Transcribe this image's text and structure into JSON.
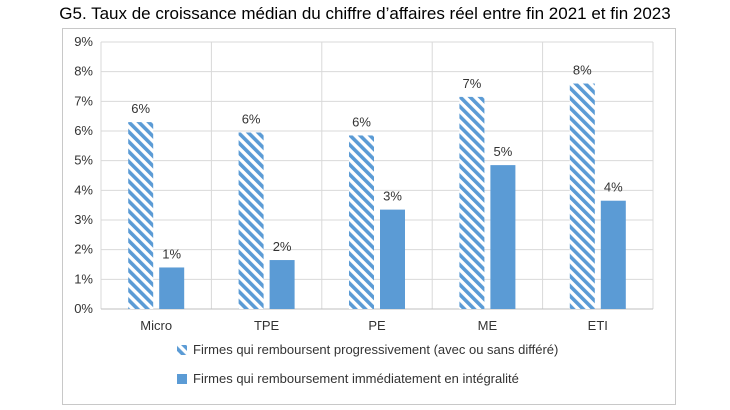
{
  "chart_data": {
    "type": "bar",
    "title": "G5. Taux de croissance médian du chiffre d’affaires réel entre fin 2021 et fin 2023",
    "categories": [
      "Micro",
      "TPE",
      "PE",
      "ME",
      "ETI"
    ],
    "series": [
      {
        "name": "Firmes qui remboursent progressivement (avec ou sans différé)",
        "values": [
          6.3,
          5.95,
          5.85,
          7.15,
          7.6
        ],
        "labels": [
          "6%",
          "6%",
          "6%",
          "7%",
          "8%"
        ],
        "pattern": "diagonal-stripes",
        "color": "#5b9bd5"
      },
      {
        "name": "Firmes qui remboursement immédiatement en intégralité",
        "values": [
          1.4,
          1.65,
          3.35,
          4.85,
          3.65
        ],
        "labels": [
          "1%",
          "2%",
          "3%",
          "5%",
          "4%"
        ],
        "pattern": "solid",
        "color": "#5b9bd5"
      }
    ],
    "ylim": [
      0,
      9
    ],
    "yticks": [
      "0%",
      "1%",
      "2%",
      "3%",
      "4%",
      "5%",
      "6%",
      "7%",
      "8%",
      "9%"
    ],
    "ylabel": "",
    "xlabel": "",
    "grid": true,
    "legend_position": "bottom"
  }
}
